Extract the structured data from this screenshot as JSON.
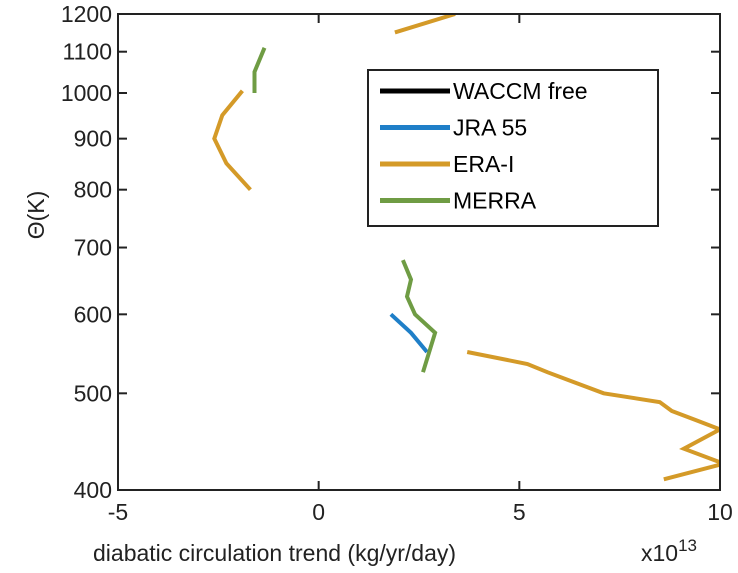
{
  "chart_data": {
    "type": "line",
    "title": "",
    "xlabel": "diabatic circulation trend (kg/yr/day)",
    "x_exponent_base": "x10",
    "x_exponent_power": "13",
    "ylabel": "Θ(K)",
    "xlim": [
      -5,
      10
    ],
    "ylim": [
      400,
      1200
    ],
    "y_scale": "log",
    "xticks": [
      -5,
      0,
      5,
      10
    ],
    "xtick_labels": [
      "-5",
      "0",
      "5",
      "10"
    ],
    "yticks": [
      400,
      500,
      600,
      700,
      800,
      900,
      1000,
      1100,
      1200
    ],
    "ytick_labels": [
      "400",
      "500",
      "600",
      "700",
      "800",
      "900",
      "1000",
      "1100",
      "1200"
    ],
    "grid": false,
    "legend_position": "top-right",
    "legend": [
      {
        "label": "WACCM free",
        "color": "#000000"
      },
      {
        "label": "JRA 55",
        "color": "#1f7fc8"
      },
      {
        "label": "ERA-I",
        "color": "#d49a28"
      },
      {
        "label": "MERRA",
        "color": "#6f9c44"
      }
    ],
    "series": [
      {
        "name": "WACCM free",
        "color": "#000000",
        "segments": []
      },
      {
        "name": "JRA 55",
        "color": "#1f7fc8",
        "segments": [
          [
            [
              1.8,
              600
            ],
            [
              2.3,
              575
            ],
            [
              2.7,
              550
            ]
          ]
        ]
      },
      {
        "name": "ERA-I",
        "color": "#d49a28",
        "segments": [
          [
            [
              3.7,
              550
            ],
            [
              5.2,
              535
            ],
            [
              5.7,
              525
            ],
            [
              7.1,
              500
            ],
            [
              8.5,
              490
            ],
            [
              8.8,
              480
            ],
            [
              9.4,
              470
            ],
            [
              10.0,
              460
            ],
            [
              9.1,
              440
            ],
            [
              10.1,
              425
            ],
            [
              8.6,
              410
            ]
          ],
          [
            [
              -1.7,
              800
            ],
            [
              -2.3,
              850
            ],
            [
              -2.6,
              900
            ],
            [
              -2.4,
              950
            ],
            [
              -1.9,
              1005
            ]
          ],
          [
            [
              1.9,
              1150
            ],
            [
              3.4,
              1200
            ]
          ]
        ]
      },
      {
        "name": "MERRA",
        "color": "#6f9c44",
        "segments": [
          [
            [
              2.6,
              525
            ],
            [
              2.9,
              575
            ],
            [
              2.4,
              600
            ],
            [
              2.2,
              625
            ],
            [
              2.3,
              650
            ],
            [
              2.1,
              680
            ]
          ],
          [
            [
              -1.6,
              1000
            ],
            [
              -1.6,
              1050
            ],
            [
              -1.35,
              1110
            ]
          ]
        ]
      }
    ]
  }
}
